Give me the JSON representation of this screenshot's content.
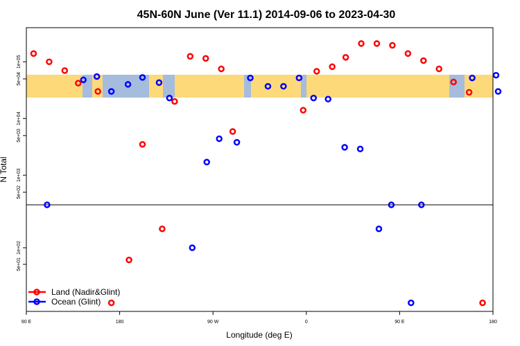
{
  "chart_data": {
    "type": "scatter",
    "title": "45N-60N June (Ver 11.1)   2014-09-06 to 2023-04-30",
    "xlabel": "Longitude (deg E)",
    "ylabel": "N Total",
    "x_ticks": [
      {
        "value": 90,
        "label": "90 E"
      },
      {
        "value": 180,
        "label": "180"
      },
      {
        "value": 270,
        "label": "90 W"
      },
      {
        "value": 360,
        "label": "0"
      },
      {
        "value": 450,
        "label": "90 E"
      },
      {
        "value": 540,
        "label": "180"
      }
    ],
    "xlim": [
      90,
      540
    ],
    "upper_panel": {
      "scale": "log",
      "ylim": [
        300,
        400000
      ],
      "y_ticks": [
        {
          "value": 500,
          "label": "5e+02"
        },
        {
          "value": 1000,
          "label": "1e+03"
        },
        {
          "value": 5000,
          "label": "5e+03"
        },
        {
          "value": 10000,
          "label": "1e+04"
        },
        {
          "value": 50000,
          "label": "5e+04"
        },
        {
          "value": 100000,
          "label": "1e+05"
        }
      ]
    },
    "lower_panel": {
      "scale": "log",
      "ylim": [
        7,
        600
      ],
      "y_ticks": [
        {
          "value": 50,
          "label": "5e+01"
        },
        {
          "value": 100,
          "label": "1e+02"
        }
      ]
    },
    "map_strip": {
      "lat_range": "45N-60N",
      "land_color": "#fdd97a",
      "ocean_color": "#a5bcdc"
    },
    "series": [
      {
        "name": "Land (Nadir&Glint)",
        "color": "#ff0000",
        "points": [
          {
            "x": 97,
            "y": 140000
          },
          {
            "x": 112,
            "y": 100000
          },
          {
            "x": 127,
            "y": 70000
          },
          {
            "x": 140,
            "y": 42000
          },
          {
            "x": 159,
            "y": 30000
          },
          {
            "x": 172,
            "y": 10
          },
          {
            "x": 189,
            "y": 60
          },
          {
            "x": 202,
            "y": 3500
          },
          {
            "x": 221,
            "y": 220
          },
          {
            "x": 233,
            "y": 20000
          },
          {
            "x": 248,
            "y": 125000
          },
          {
            "x": 263,
            "y": 115000
          },
          {
            "x": 278,
            "y": 75000
          },
          {
            "x": 289,
            "y": 5900
          },
          {
            "x": 357,
            "y": 14000
          },
          {
            "x": 370,
            "y": 68000
          },
          {
            "x": 385,
            "y": 82000
          },
          {
            "x": 398,
            "y": 120000
          },
          {
            "x": 413,
            "y": 210000
          },
          {
            "x": 428,
            "y": 210000
          },
          {
            "x": 443,
            "y": 195000
          },
          {
            "x": 458,
            "y": 140000
          },
          {
            "x": 473,
            "y": 105000
          },
          {
            "x": 488,
            "y": 75000
          },
          {
            "x": 502,
            "y": 44000
          },
          {
            "x": 517,
            "y": 29000
          },
          {
            "x": 530,
            "y": 10
          }
        ]
      },
      {
        "name": "Ocean (Glint)",
        "color": "#0000ff",
        "points": [
          {
            "x": 110,
            "y": 300
          },
          {
            "x": 145,
            "y": 48000
          },
          {
            "x": 158,
            "y": 55000
          },
          {
            "x": 172,
            "y": 30000
          },
          {
            "x": 188,
            "y": 40000
          },
          {
            "x": 202,
            "y": 53000
          },
          {
            "x": 218,
            "y": 43000
          },
          {
            "x": 228,
            "y": 23000
          },
          {
            "x": 250,
            "y": 100
          },
          {
            "x": 264,
            "y": 1700
          },
          {
            "x": 276,
            "y": 4400
          },
          {
            "x": 293,
            "y": 3800
          },
          {
            "x": 306,
            "y": 52000
          },
          {
            "x": 323,
            "y": 37000
          },
          {
            "x": 338,
            "y": 37000
          },
          {
            "x": 353,
            "y": 52000
          },
          {
            "x": 367,
            "y": 23000
          },
          {
            "x": 381,
            "y": 22000
          },
          {
            "x": 397,
            "y": 3100
          },
          {
            "x": 412,
            "y": 2900
          },
          {
            "x": 430,
            "y": 220
          },
          {
            "x": 442,
            "y": 300
          },
          {
            "x": 461,
            "y": 10
          },
          {
            "x": 471,
            "y": 300
          },
          {
            "x": 520,
            "y": 52000
          },
          {
            "x": 543,
            "y": 58000
          },
          {
            "x": 545,
            "y": 30000
          }
        ]
      }
    ],
    "legend_position": "bottom-left"
  }
}
